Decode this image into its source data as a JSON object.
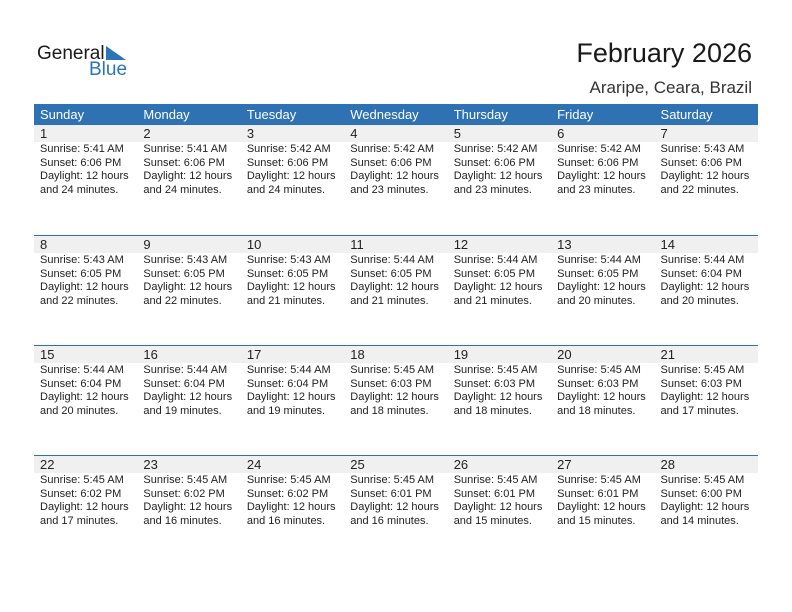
{
  "logo": {
    "general": "General",
    "blue": "Blue",
    "brand_color": "#2a74b8"
  },
  "header": {
    "title": "February 2026",
    "location": "Araripe, Ceara, Brazil"
  },
  "weekdays": [
    "Sunday",
    "Monday",
    "Tuesday",
    "Wednesday",
    "Thursday",
    "Friday",
    "Saturday"
  ],
  "accent_color": "#2e72b4",
  "days": [
    {
      "date": "1",
      "sunrise": "Sunrise: 5:41 AM",
      "sunset": "Sunset: 6:06 PM",
      "daylight": "Daylight: 12 hours",
      "minutes": "and 24 minutes."
    },
    {
      "date": "2",
      "sunrise": "Sunrise: 5:41 AM",
      "sunset": "Sunset: 6:06 PM",
      "daylight": "Daylight: 12 hours",
      "minutes": "and 24 minutes."
    },
    {
      "date": "3",
      "sunrise": "Sunrise: 5:42 AM",
      "sunset": "Sunset: 6:06 PM",
      "daylight": "Daylight: 12 hours",
      "minutes": "and 24 minutes."
    },
    {
      "date": "4",
      "sunrise": "Sunrise: 5:42 AM",
      "sunset": "Sunset: 6:06 PM",
      "daylight": "Daylight: 12 hours",
      "minutes": "and 23 minutes."
    },
    {
      "date": "5",
      "sunrise": "Sunrise: 5:42 AM",
      "sunset": "Sunset: 6:06 PM",
      "daylight": "Daylight: 12 hours",
      "minutes": "and 23 minutes."
    },
    {
      "date": "6",
      "sunrise": "Sunrise: 5:42 AM",
      "sunset": "Sunset: 6:06 PM",
      "daylight": "Daylight: 12 hours",
      "minutes": "and 23 minutes."
    },
    {
      "date": "7",
      "sunrise": "Sunrise: 5:43 AM",
      "sunset": "Sunset: 6:06 PM",
      "daylight": "Daylight: 12 hours",
      "minutes": "and 22 minutes."
    },
    {
      "date": "8",
      "sunrise": "Sunrise: 5:43 AM",
      "sunset": "Sunset: 6:05 PM",
      "daylight": "Daylight: 12 hours",
      "minutes": "and 22 minutes."
    },
    {
      "date": "9",
      "sunrise": "Sunrise: 5:43 AM",
      "sunset": "Sunset: 6:05 PM",
      "daylight": "Daylight: 12 hours",
      "minutes": "and 22 minutes."
    },
    {
      "date": "10",
      "sunrise": "Sunrise: 5:43 AM",
      "sunset": "Sunset: 6:05 PM",
      "daylight": "Daylight: 12 hours",
      "minutes": "and 21 minutes."
    },
    {
      "date": "11",
      "sunrise": "Sunrise: 5:44 AM",
      "sunset": "Sunset: 6:05 PM",
      "daylight": "Daylight: 12 hours",
      "minutes": "and 21 minutes."
    },
    {
      "date": "12",
      "sunrise": "Sunrise: 5:44 AM",
      "sunset": "Sunset: 6:05 PM",
      "daylight": "Daylight: 12 hours",
      "minutes": "and 21 minutes."
    },
    {
      "date": "13",
      "sunrise": "Sunrise: 5:44 AM",
      "sunset": "Sunset: 6:05 PM",
      "daylight": "Daylight: 12 hours",
      "minutes": "and 20 minutes."
    },
    {
      "date": "14",
      "sunrise": "Sunrise: 5:44 AM",
      "sunset": "Sunset: 6:04 PM",
      "daylight": "Daylight: 12 hours",
      "minutes": "and 20 minutes."
    },
    {
      "date": "15",
      "sunrise": "Sunrise: 5:44 AM",
      "sunset": "Sunset: 6:04 PM",
      "daylight": "Daylight: 12 hours",
      "minutes": "and 20 minutes."
    },
    {
      "date": "16",
      "sunrise": "Sunrise: 5:44 AM",
      "sunset": "Sunset: 6:04 PM",
      "daylight": "Daylight: 12 hours",
      "minutes": "and 19 minutes."
    },
    {
      "date": "17",
      "sunrise": "Sunrise: 5:44 AM",
      "sunset": "Sunset: 6:04 PM",
      "daylight": "Daylight: 12 hours",
      "minutes": "and 19 minutes."
    },
    {
      "date": "18",
      "sunrise": "Sunrise: 5:45 AM",
      "sunset": "Sunset: 6:03 PM",
      "daylight": "Daylight: 12 hours",
      "minutes": "and 18 minutes."
    },
    {
      "date": "19",
      "sunrise": "Sunrise: 5:45 AM",
      "sunset": "Sunset: 6:03 PM",
      "daylight": "Daylight: 12 hours",
      "minutes": "and 18 minutes."
    },
    {
      "date": "20",
      "sunrise": "Sunrise: 5:45 AM",
      "sunset": "Sunset: 6:03 PM",
      "daylight": "Daylight: 12 hours",
      "minutes": "and 18 minutes."
    },
    {
      "date": "21",
      "sunrise": "Sunrise: 5:45 AM",
      "sunset": "Sunset: 6:03 PM",
      "daylight": "Daylight: 12 hours",
      "minutes": "and 17 minutes."
    },
    {
      "date": "22",
      "sunrise": "Sunrise: 5:45 AM",
      "sunset": "Sunset: 6:02 PM",
      "daylight": "Daylight: 12 hours",
      "minutes": "and 17 minutes."
    },
    {
      "date": "23",
      "sunrise": "Sunrise: 5:45 AM",
      "sunset": "Sunset: 6:02 PM",
      "daylight": "Daylight: 12 hours",
      "minutes": "and 16 minutes."
    },
    {
      "date": "24",
      "sunrise": "Sunrise: 5:45 AM",
      "sunset": "Sunset: 6:02 PM",
      "daylight": "Daylight: 12 hours",
      "minutes": "and 16 minutes."
    },
    {
      "date": "25",
      "sunrise": "Sunrise: 5:45 AM",
      "sunset": "Sunset: 6:01 PM",
      "daylight": "Daylight: 12 hours",
      "minutes": "and 16 minutes."
    },
    {
      "date": "26",
      "sunrise": "Sunrise: 5:45 AM",
      "sunset": "Sunset: 6:01 PM",
      "daylight": "Daylight: 12 hours",
      "minutes": "and 15 minutes."
    },
    {
      "date": "27",
      "sunrise": "Sunrise: 5:45 AM",
      "sunset": "Sunset: 6:01 PM",
      "daylight": "Daylight: 12 hours",
      "minutes": "and 15 minutes."
    },
    {
      "date": "28",
      "sunrise": "Sunrise: 5:45 AM",
      "sunset": "Sunset: 6:00 PM",
      "daylight": "Daylight: 12 hours",
      "minutes": "and 14 minutes."
    }
  ]
}
